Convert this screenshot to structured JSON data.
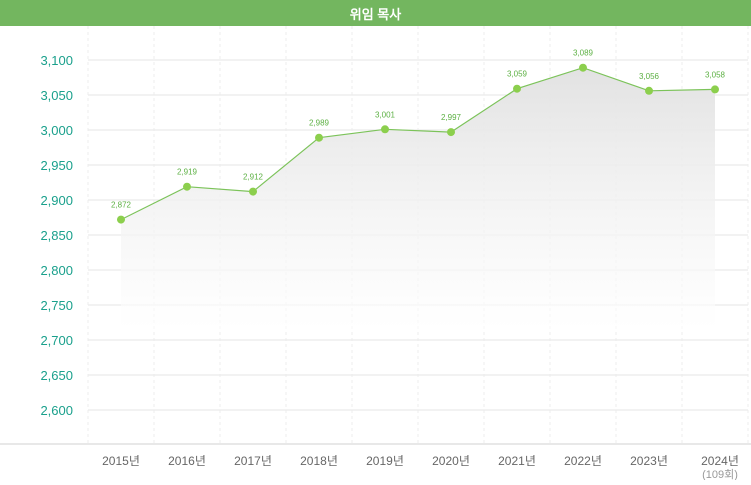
{
  "header": {
    "title": "위임 목사"
  },
  "colors": {
    "header_bg": "#73b65f",
    "line": "#7cc35a",
    "point": "#8ccf4d",
    "ytick": "#1aa08c",
    "grid": "#e6e6e6"
  },
  "chart_data": {
    "type": "area",
    "title": "위임 목사",
    "categories": [
      "2015년",
      "2016년",
      "2017년",
      "2018년",
      "2019년",
      "2020년",
      "2021년",
      "2022년",
      "2023년",
      "2024년"
    ],
    "category_notes": [
      "",
      "",
      "",
      "",
      "",
      "",
      "",
      "",
      "",
      "(109회)"
    ],
    "values": [
      2872,
      2919,
      2912,
      2989,
      3001,
      2997,
      3059,
      3089,
      3056,
      3058
    ],
    "value_labels": [
      "2,872",
      "2,919",
      "2,912",
      "2,989",
      "3,001",
      "2,997",
      "3,059",
      "3,089",
      "3,056",
      "3,058"
    ],
    "ylim": [
      2575,
      3125
    ],
    "yticks": [
      2600,
      2650,
      2700,
      2750,
      2800,
      2850,
      2900,
      2950,
      3000,
      3050,
      3100
    ],
    "ytick_labels": [
      "2,600",
      "2,650",
      "2,700",
      "2,750",
      "2,800",
      "2,850",
      "2,900",
      "2,950",
      "3,000",
      "3,050",
      "3,100"
    ],
    "grid": true,
    "legend": "none",
    "xlabel": "",
    "ylabel": ""
  }
}
